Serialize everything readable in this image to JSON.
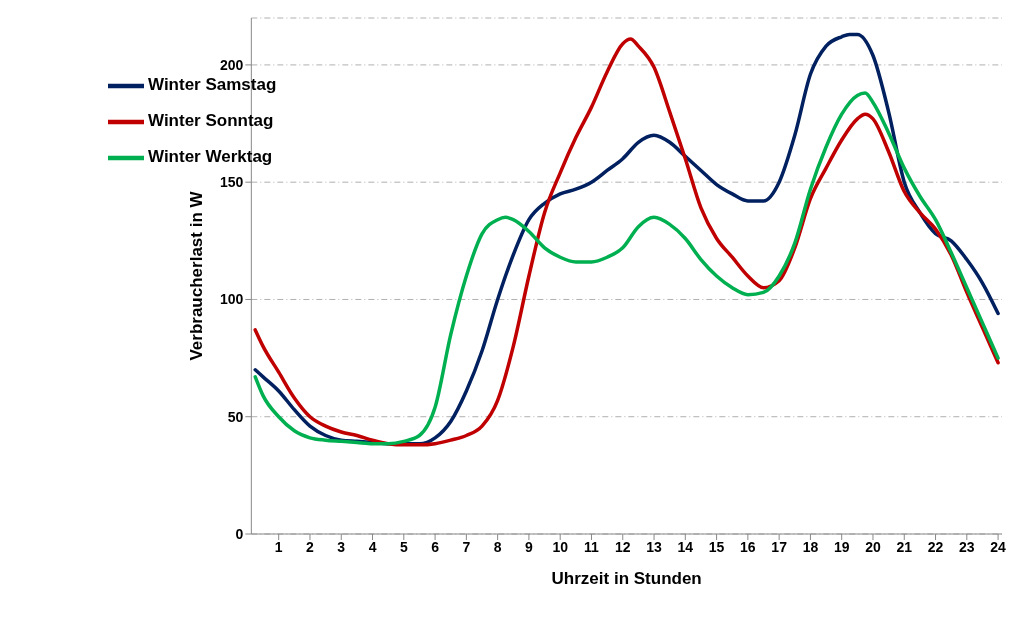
{
  "chart_data": {
    "type": "line",
    "xlabel": "Uhrzeit in Stunden",
    "ylabel": "Verbraucherlast in W",
    "xlim": [
      0.125,
      24.125
    ],
    "xticks": [
      1,
      2,
      3,
      4,
      5,
      6,
      7,
      8,
      9,
      10,
      11,
      12,
      13,
      14,
      15,
      16,
      17,
      18,
      19,
      20,
      21,
      22,
      23,
      24
    ],
    "ylim": [
      0,
      220
    ],
    "yticks": [
      0,
      50,
      100,
      150,
      200
    ],
    "grid": "y",
    "legend": "top left",
    "marker": "none",
    "line_style": "solid",
    "series": [
      {
        "name": "Winter Samstag",
        "color": "#002060",
        "x": [
          0.25,
          0.5,
          1,
          1.5,
          2,
          2.5,
          3,
          3.5,
          4,
          4.5,
          5,
          5.5,
          6,
          6.5,
          7,
          7.5,
          8,
          8.5,
          9,
          9.5,
          10,
          10.5,
          11,
          11.5,
          12,
          12.5,
          13,
          13.5,
          14,
          14.5,
          15,
          15.5,
          16,
          16.5,
          17,
          17.5,
          18,
          18.5,
          19,
          19.25,
          19.5,
          20,
          20.5,
          21,
          21.5,
          22,
          22.5,
          23,
          23.5,
          24
        ],
        "values": [
          70,
          67,
          61,
          53,
          46,
          42,
          40,
          39.5,
          39,
          38.5,
          38.5,
          38.5,
          41,
          48,
          61,
          78,
          100,
          119,
          134,
          141,
          145,
          147,
          150,
          155,
          160,
          167,
          170,
          167,
          161,
          155,
          149,
          145,
          142,
          142,
          150,
          170,
          196,
          208,
          212,
          213,
          213,
          204,
          180,
          150,
          137,
          128,
          125,
          117,
          107,
          94
        ]
      },
      {
        "name": "Winter Sonntag",
        "color": "#c00000",
        "x": [
          0.25,
          0.5,
          1,
          1.5,
          2,
          2.5,
          3,
          3.5,
          4,
          4.5,
          5,
          5.5,
          6,
          6.5,
          7,
          7.5,
          8,
          8.5,
          9,
          9.5,
          10,
          10.5,
          11,
          11.5,
          12,
          12.25,
          12.5,
          13,
          13.5,
          14,
          14.5,
          15,
          15.5,
          16,
          16.5,
          17,
          17.5,
          18,
          18.5,
          19,
          19.5,
          19.75,
          20,
          20.5,
          21,
          21.5,
          22,
          22.5,
          23,
          23.5,
          24
        ],
        "values": [
          87,
          80,
          69,
          58,
          50,
          46,
          43.5,
          42,
          40,
          38.5,
          38,
          38,
          38.5,
          40,
          42,
          46,
          57,
          80,
          110,
          137,
          154,
          169,
          182,
          197,
          209,
          211,
          208,
          199,
          180,
          160,
          139,
          126,
          118,
          110,
          105,
          108,
          122,
          143,
          156,
          168,
          177,
          179,
          177,
          163,
          146,
          137,
          130,
          119,
          103,
          88,
          73
        ]
      },
      {
        "name": "Winter Werktag",
        "color": "#00b050",
        "x": [
          0.25,
          0.5,
          1,
          1.5,
          2,
          2.5,
          3,
          3.5,
          4,
          4.5,
          5,
          5.5,
          6,
          6.5,
          7,
          7.5,
          8,
          8.25,
          8.5,
          9,
          9.5,
          10,
          10.5,
          11,
          11.5,
          12,
          12.5,
          13,
          13.5,
          14,
          14.5,
          15,
          15.5,
          16,
          16.5,
          17,
          17.5,
          18,
          18.5,
          19,
          19.5,
          19.75,
          20,
          20.5,
          21,
          21.5,
          22,
          22.5,
          23,
          23.5,
          24
        ],
        "values": [
          67,
          59,
          50,
          44,
          41,
          40,
          39.5,
          39,
          38.5,
          38.5,
          39.5,
          42,
          54,
          85,
          110,
          128,
          134,
          135,
          134,
          129,
          122,
          118,
          116,
          116,
          118,
          122,
          131,
          135,
          132,
          126,
          117,
          110,
          105,
          102,
          103,
          110,
          124,
          147,
          165,
          179,
          187,
          188,
          184,
          171,
          156,
          144,
          134,
          120,
          105,
          90,
          75
        ]
      }
    ]
  }
}
